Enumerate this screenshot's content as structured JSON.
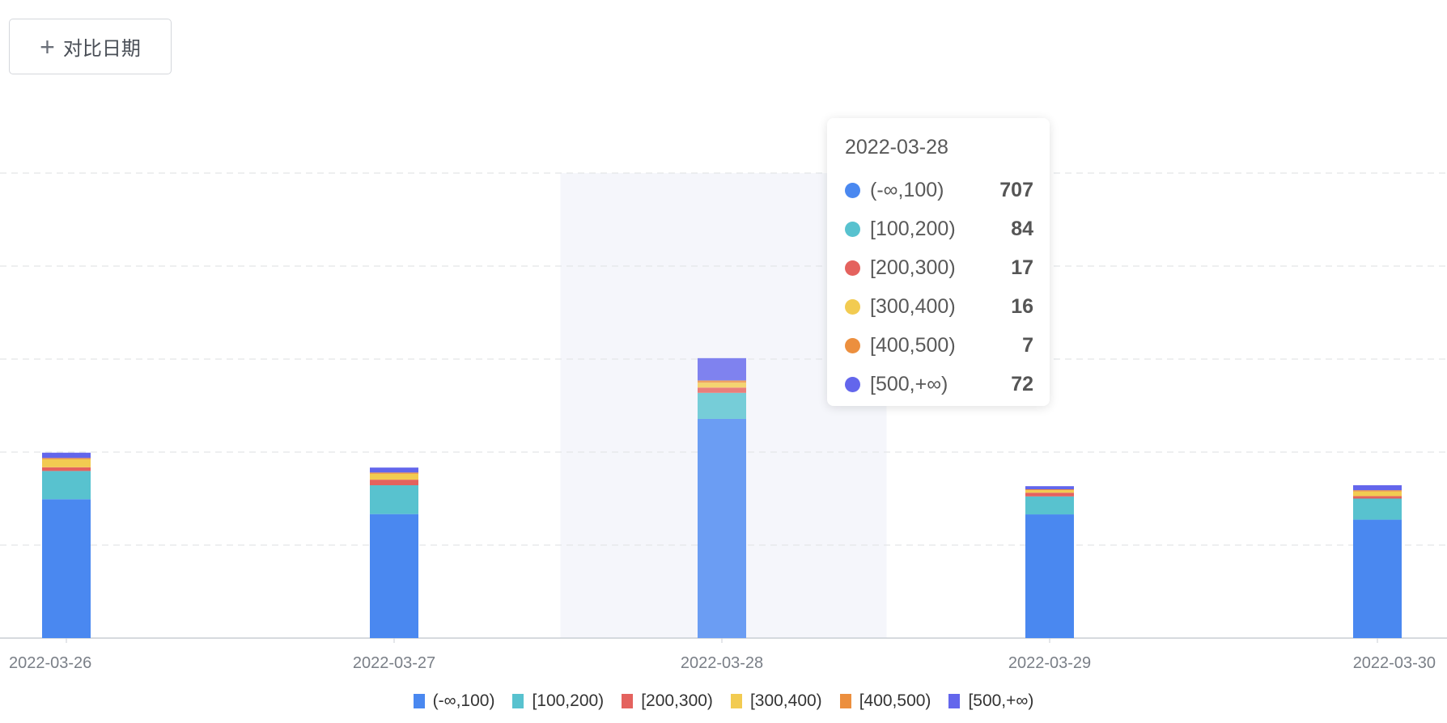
{
  "toolbar": {
    "compare_label": "对比日期",
    "plus_icon": "+"
  },
  "chart_data": {
    "type": "bar",
    "stacked": true,
    "title": "",
    "xlabel": "",
    "ylabel": "",
    "ylim": [
      0,
      1500
    ],
    "y_gridlines": [
      300,
      600,
      900,
      1200,
      1500
    ],
    "grid": true,
    "legend_position": "bottom",
    "categories": [
      "2022-03-26",
      "2022-03-27",
      "2022-03-28",
      "2022-03-29",
      "2022-03-30"
    ],
    "highlighted_category": "2022-03-28",
    "series": [
      {
        "name": "(-∞,100)",
        "color": "#4a88f0",
        "values": [
          448,
          400,
          707,
          399,
          382
        ]
      },
      {
        "name": "[100,200)",
        "color": "#58c2cf",
        "values": [
          91,
          93,
          84,
          58,
          68
        ]
      },
      {
        "name": "[200,300)",
        "color": "#e4625e",
        "values": [
          12,
          18,
          17,
          12,
          8
        ]
      },
      {
        "name": "[300,400)",
        "color": "#f2cb51",
        "values": [
          26,
          19,
          16,
          8,
          15
        ]
      },
      {
        "name": "[400,500)",
        "color": "#ec8f3e",
        "values": [
          4,
          4,
          7,
          3,
          4
        ]
      },
      {
        "name": "[500,+∞)",
        "color": "#6366ec",
        "values": [
          17,
          16,
          72,
          10,
          16
        ]
      }
    ]
  },
  "tooltip": {
    "title": "2022-03-28",
    "rows": [
      {
        "label": "(-∞,100)",
        "value": "707"
      },
      {
        "label": "[100,200)",
        "value": "84"
      },
      {
        "label": "[200,300)",
        "value": "17"
      },
      {
        "label": "[300,400)",
        "value": "16"
      },
      {
        "label": "[400,500)",
        "value": "7"
      },
      {
        "label": "[500,+∞)",
        "value": "72"
      }
    ]
  }
}
